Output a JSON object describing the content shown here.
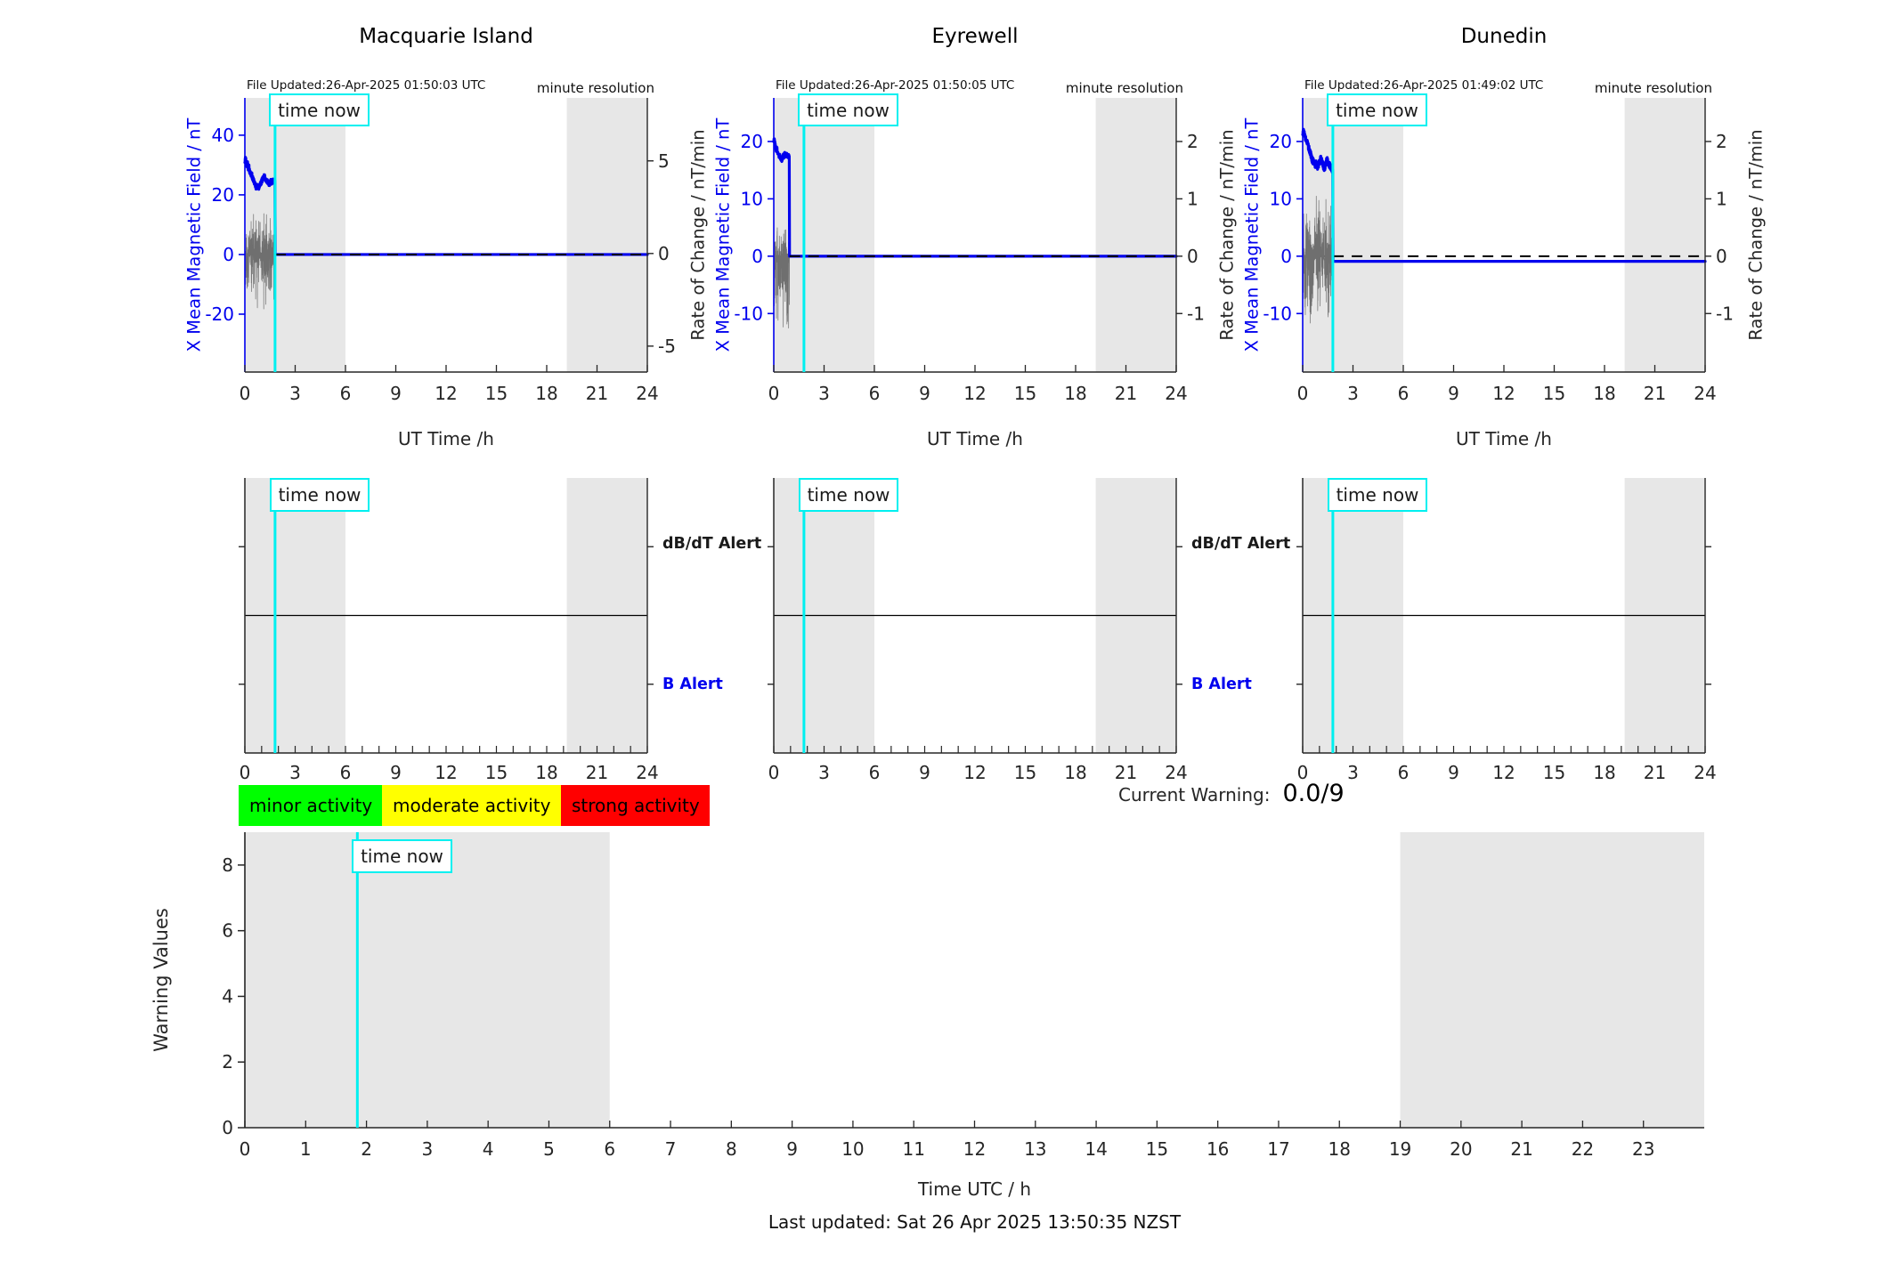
{
  "time_now_label": "time now",
  "colors": {
    "field_blue": "#0000ee",
    "cyan_now": "#00f0f0",
    "shade_band": "#e7e7e7",
    "noise_gray": "#6f6f6f",
    "spine_dark": "#262626",
    "legend_green": "#00ff00",
    "legend_yellow": "#ffff00",
    "legend_red": "#ff0000"
  },
  "legend": {
    "items": [
      {
        "label": "minor activity",
        "color": "#00ff00"
      },
      {
        "label": "moderate activity",
        "color": "#ffff00"
      },
      {
        "label": "strong activity",
        "color": "#ff0000"
      }
    ]
  },
  "current_warning": {
    "label": "Current Warning:",
    "value": "0.0/9"
  },
  "footer": {
    "last_updated": "Last updated: Sat 26 Apr 2025 13:50:35 NZST"
  },
  "chart_data": [
    {
      "kind": "station",
      "type": "line",
      "title": "Macquarie Island",
      "file_updated": "File Updated:26-Apr-2025 01:50:03 UTC",
      "resolution_note": "minute resolution",
      "xlabel": "UT Time /h",
      "xlim": [
        0,
        24
      ],
      "x_ticks": [
        0,
        3,
        6,
        9,
        12,
        15,
        18,
        21,
        24
      ],
      "left_axis": {
        "label": "X Mean Magnetic Field / nT",
        "ticks": [
          -20,
          0,
          20,
          40
        ],
        "lim": [
          -39.4,
          52.5
        ]
      },
      "right_axis": {
        "label": "Rate of Change / nT/min",
        "ticks": [
          -5,
          0,
          5
        ],
        "lim": [
          -6.4,
          8.4
        ]
      },
      "shaded_hours": [
        [
          0,
          6
        ],
        [
          19.2,
          24
        ]
      ],
      "time_now_hour": 1.8,
      "field": {
        "points": [
          [
            0,
            31.2
          ],
          [
            0.04,
            32.3
          ],
          [
            0.08,
            30.6
          ],
          [
            0.12,
            29.8
          ],
          [
            0.16,
            30.4
          ],
          [
            0.2,
            28.9
          ],
          [
            0.24,
            29.5
          ],
          [
            0.28,
            28.1
          ],
          [
            0.32,
            27.4
          ],
          [
            0.36,
            26.7
          ],
          [
            0.4,
            27.2
          ],
          [
            0.44,
            25.9
          ],
          [
            0.48,
            25.3
          ],
          [
            0.52,
            24.8
          ],
          [
            0.56,
            24.2
          ],
          [
            0.6,
            23.6
          ],
          [
            0.64,
            23.0
          ],
          [
            0.68,
            22.4
          ],
          [
            0.72,
            23.1
          ],
          [
            0.76,
            22.6
          ],
          [
            0.8,
            22.9
          ],
          [
            0.84,
            22.4
          ],
          [
            0.88,
            23.0
          ],
          [
            0.92,
            23.6
          ],
          [
            0.96,
            24.1
          ],
          [
            1.0,
            24.6
          ],
          [
            1.05,
            25.3
          ],
          [
            1.1,
            25.9
          ],
          [
            1.15,
            26.2
          ],
          [
            1.2,
            25.7
          ],
          [
            1.25,
            25.2
          ],
          [
            1.3,
            24.8
          ],
          [
            1.35,
            24.4
          ],
          [
            1.4,
            23.9
          ],
          [
            1.45,
            23.5
          ],
          [
            1.5,
            23.9
          ],
          [
            1.55,
            24.6
          ],
          [
            1.6,
            24.1
          ],
          [
            1.65,
            24.8
          ],
          [
            1.7,
            24.4
          ],
          [
            1.75,
            24.1
          ],
          [
            1.8,
            24.3
          ]
        ],
        "drop_hour": 1.81,
        "after_value": 0,
        "jitter": 0.8
      },
      "noise": {
        "from": 0,
        "to": 1.8,
        "min": -22,
        "max": 15,
        "seed": 11
      },
      "zero_dash": true
    },
    {
      "kind": "station",
      "type": "line",
      "title": "Eyrewell",
      "file_updated": "File Updated:26-Apr-2025 01:50:05 UTC",
      "resolution_note": "minute resolution",
      "xlabel": "UT Time /h",
      "xlim": [
        0,
        24
      ],
      "x_ticks": [
        0,
        3,
        6,
        9,
        12,
        15,
        18,
        21,
        24
      ],
      "left_axis": {
        "label": "X Mean Magnetic Field / nT",
        "ticks": [
          -10,
          0,
          10,
          20
        ],
        "lim": [
          -20.2,
          27.6
        ]
      },
      "right_axis": {
        "label": "Rate of Change / nT/min",
        "ticks": [
          -1,
          0,
          1,
          2
        ],
        "lim": [
          -2.02,
          2.76
        ]
      },
      "shaded_hours": [
        [
          0,
          6
        ],
        [
          19.2,
          24
        ]
      ],
      "time_now_hour": 1.8,
      "field": {
        "points": [
          [
            0,
            20.1
          ],
          [
            0.03,
            20.6
          ],
          [
            0.06,
            19.9
          ],
          [
            0.09,
            19.3
          ],
          [
            0.12,
            18.8
          ],
          [
            0.15,
            18.4
          ],
          [
            0.18,
            18.9
          ],
          [
            0.21,
            18.3
          ],
          [
            0.24,
            17.9
          ],
          [
            0.27,
            18.2
          ],
          [
            0.3,
            17.7
          ],
          [
            0.33,
            17.4
          ],
          [
            0.36,
            17.8
          ],
          [
            0.39,
            17.2
          ],
          [
            0.42,
            16.9
          ],
          [
            0.45,
            17.2
          ],
          [
            0.48,
            16.8
          ],
          [
            0.51,
            17.0
          ],
          [
            0.54,
            17.3
          ],
          [
            0.57,
            17.6
          ],
          [
            0.6,
            17.4
          ],
          [
            0.63,
            17.7
          ],
          [
            0.66,
            17.9
          ],
          [
            0.69,
            17.6
          ],
          [
            0.72,
            17.8
          ],
          [
            0.75,
            17.5
          ],
          [
            0.78,
            17.7
          ],
          [
            0.81,
            17.5
          ],
          [
            0.84,
            17.6
          ],
          [
            0.87,
            17.4
          ],
          [
            0.9,
            17.5
          ],
          [
            0.93,
            17.5
          ]
        ],
        "drop_hour": 0.94,
        "after_value": 0,
        "jitter": 0.35
      },
      "noise": {
        "from": 0,
        "to": 0.94,
        "min": -14,
        "max": 6,
        "seed": 22
      },
      "zero_dash": true
    },
    {
      "kind": "station",
      "type": "line",
      "title": "Dunedin",
      "file_updated": "File Updated:26-Apr-2025 01:49:02 UTC",
      "resolution_note": "minute resolution",
      "xlabel": "UT Time /h",
      "xlim": [
        0,
        24
      ],
      "x_ticks": [
        0,
        3,
        6,
        9,
        12,
        15,
        18,
        21,
        24
      ],
      "left_axis": {
        "label": "X Mean Magnetic Field / nT",
        "ticks": [
          -10,
          0,
          10,
          20
        ],
        "lim": [
          -20.2,
          27.6
        ]
      },
      "right_axis": {
        "label": "Rate of Change / nT/min",
        "ticks": [
          -1,
          0,
          1,
          2
        ],
        "lim": [
          -2.02,
          2.76
        ]
      },
      "shaded_hours": [
        [
          0,
          6
        ],
        [
          19.2,
          24
        ]
      ],
      "time_now_hour": 1.8,
      "field": {
        "points": [
          [
            0,
            21.4
          ],
          [
            0.04,
            22.1
          ],
          [
            0.08,
            21.5
          ],
          [
            0.12,
            21.0
          ],
          [
            0.16,
            20.6
          ],
          [
            0.2,
            20.2
          ],
          [
            0.24,
            19.7
          ],
          [
            0.28,
            20.1
          ],
          [
            0.32,
            19.4
          ],
          [
            0.36,
            18.9
          ],
          [
            0.4,
            18.5
          ],
          [
            0.44,
            18.1
          ],
          [
            0.48,
            17.8
          ],
          [
            0.52,
            17.3
          ],
          [
            0.56,
            16.9
          ],
          [
            0.6,
            16.5
          ],
          [
            0.64,
            16.9
          ],
          [
            0.68,
            16.3
          ],
          [
            0.72,
            16.0
          ],
          [
            0.76,
            15.8
          ],
          [
            0.8,
            16.2
          ],
          [
            0.84,
            15.9
          ],
          [
            0.88,
            15.6
          ],
          [
            0.92,
            15.8
          ],
          [
            0.96,
            16.0
          ],
          [
            1.0,
            16.3
          ],
          [
            1.04,
            16.7
          ],
          [
            1.08,
            17.0
          ],
          [
            1.12,
            16.8
          ],
          [
            1.16,
            16.4
          ],
          [
            1.2,
            16.0
          ],
          [
            1.24,
            15.6
          ],
          [
            1.28,
            15.2
          ],
          [
            1.32,
            15.4
          ],
          [
            1.36,
            15.9
          ],
          [
            1.4,
            16.5
          ],
          [
            1.44,
            16.9
          ],
          [
            1.48,
            16.6
          ],
          [
            1.52,
            16.3
          ],
          [
            1.56,
            16.1
          ],
          [
            1.6,
            15.9
          ],
          [
            1.64,
            15.7
          ],
          [
            1.68,
            15.5
          ],
          [
            1.72,
            15.3
          ],
          [
            1.76,
            15.1
          ],
          [
            1.8,
            15.0
          ]
        ],
        "drop_hour": 1.81,
        "after_value": -0.9,
        "jitter": 0.5
      },
      "noise": {
        "from": 0,
        "to": 1.8,
        "min": -14,
        "max": 12.5,
        "seed": 33
      },
      "zero_dash": true
    },
    {
      "kind": "alert-row",
      "type": "event-timeline",
      "panels": 3,
      "top_label": "dB/dT Alert",
      "bottom_label": "B Alert",
      "labelled_panels": [
        0,
        1
      ],
      "xlim": [
        0,
        24
      ],
      "x_ticks": [
        0,
        3,
        6,
        9,
        12,
        15,
        18,
        21,
        24
      ],
      "minor_tick_step": 1,
      "shaded_hours": [
        [
          0,
          6
        ],
        [
          19.2,
          24
        ]
      ],
      "time_now_hour": 1.8,
      "events": []
    },
    {
      "kind": "warning",
      "type": "line",
      "ylabel": "Warning Values",
      "xlabel": "Time UTC / h",
      "y_ticks": [
        0,
        2,
        4,
        6,
        8
      ],
      "ylim": [
        0,
        9
      ],
      "x_ticks": [
        0,
        1,
        2,
        3,
        4,
        5,
        6,
        7,
        8,
        9,
        10,
        11,
        12,
        13,
        14,
        15,
        16,
        17,
        18,
        19,
        20,
        21,
        22,
        23
      ],
      "xlim": [
        0,
        24
      ],
      "shaded_hours": [
        [
          0,
          6
        ],
        [
          19,
          24
        ]
      ],
      "time_now_hour": 1.85,
      "series": []
    }
  ]
}
